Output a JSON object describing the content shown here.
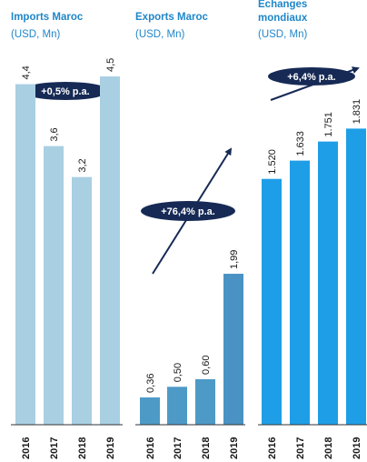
{
  "colors": {
    "title": "#1f86c8",
    "badge": "#162a55",
    "imports_bar": "#a9cfe3",
    "exports_bar_early": "#4e9ac7",
    "exports_bar_2019": "#4a92c4",
    "world_bar": "#1e9ee6",
    "axis": "#333333"
  },
  "chart_data": [
    {
      "type": "bar",
      "title": "Imports Maroc",
      "subtitle": "(USD, Mn)",
      "categories": [
        "2016",
        "2017",
        "2018",
        "2019"
      ],
      "values": [
        4.4,
        3.6,
        3.2,
        4.5
      ],
      "labels": [
        "4,4",
        "3,6",
        "3,2",
        "4,5"
      ],
      "ylim": [
        0,
        4.9
      ],
      "growth": "+0,5% p.a."
    },
    {
      "type": "bar",
      "title": "Exports Maroc",
      "subtitle": "(USD, Mn)",
      "categories": [
        "2016",
        "2017",
        "2018",
        "2019"
      ],
      "values": [
        0.36,
        0.5,
        0.6,
        1.99
      ],
      "labels": [
        "0,36",
        "0,50",
        "0,60",
        "1,99"
      ],
      "ylim": [
        0,
        5.0
      ],
      "growth": "+76,4% p.a."
    },
    {
      "type": "bar",
      "title": "Echanges",
      "title2": "mondiaux",
      "subtitle": "(USD, Mn)",
      "categories": [
        "2016",
        "2017",
        "2018",
        "2019"
      ],
      "values": [
        1520,
        1633,
        1751,
        1831
      ],
      "labels": [
        "1.520",
        "1.633",
        "1.751",
        "1.831"
      ],
      "ylim": [
        0,
        2345
      ],
      "growth": "+6,4% p.a."
    }
  ]
}
